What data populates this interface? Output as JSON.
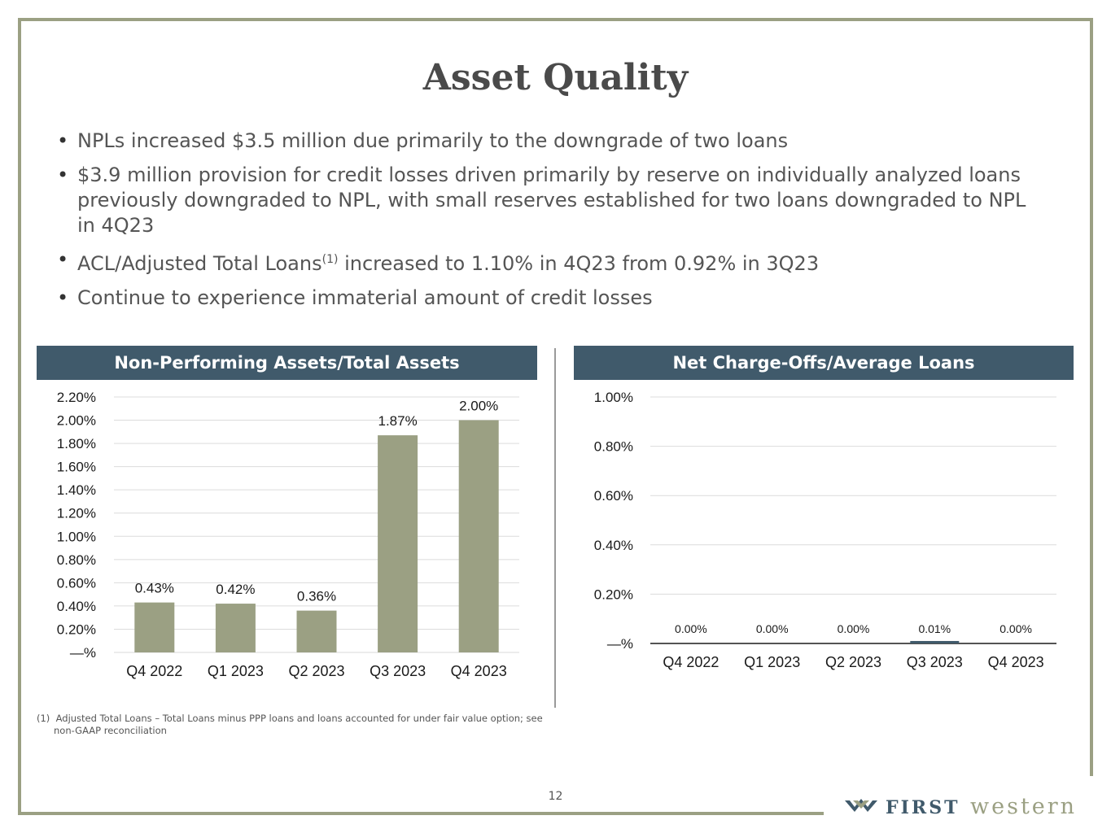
{
  "title": "Asset Quality",
  "bullets": [
    {
      "text": "NPLs increased $3.5 million due primarily to the downgrade of two loans"
    },
    {
      "text": "$3.9 million provision for credit losses driven primarily by reserve on individually analyzed loans previously downgraded to NPL, with small reserves established for two loans downgraded to NPL in 4Q23"
    },
    {
      "text_before": "ACL/Adjusted Total Loans",
      "sup": "(1)",
      "text_after": " increased to 1.10% in 4Q23 from 0.92% in 3Q23"
    },
    {
      "text": "Continue to experience immaterial amount of credit losses"
    }
  ],
  "colors": {
    "frame": "#9ba083",
    "panel_header": "#405a6b",
    "bar": "#9ba083",
    "bar_dark": "#405a6b"
  },
  "chart_data": [
    {
      "type": "bar",
      "title": "Non-Performing Assets/Total Assets",
      "categories": [
        "Q4 2022",
        "Q1 2023",
        "Q2 2023",
        "Q3 2023",
        "Q4 2023"
      ],
      "values": [
        0.43,
        0.42,
        0.36,
        1.87,
        2.0
      ],
      "data_labels": [
        "0.43%",
        "0.42%",
        "0.36%",
        "1.87%",
        "2.00%"
      ],
      "yticks": [
        0,
        0.2,
        0.4,
        0.6,
        0.8,
        1.0,
        1.2,
        1.4,
        1.6,
        1.8,
        2.0,
        2.2
      ],
      "ytick_labels": [
        "—%",
        "0.20%",
        "0.40%",
        "0.60%",
        "0.80%",
        "1.00%",
        "1.20%",
        "1.40%",
        "1.60%",
        "1.80%",
        "2.00%",
        "2.20%"
      ],
      "ylim": [
        0,
        2.2
      ],
      "grid": true,
      "xlabel": "",
      "ylabel": ""
    },
    {
      "type": "bar",
      "title": "Net Charge-Offs/Average Loans",
      "categories": [
        "Q4 2022",
        "Q1 2023",
        "Q2 2023",
        "Q3 2023",
        "Q4 2023"
      ],
      "values": [
        0.0,
        0.0,
        0.0,
        0.01,
        0.0
      ],
      "data_labels": [
        "0.00%",
        "0.00%",
        "0.00%",
        "0.01%",
        "0.00%"
      ],
      "yticks": [
        0,
        0.2,
        0.4,
        0.6,
        0.8,
        1.0
      ],
      "ytick_labels": [
        "—%",
        "0.20%",
        "0.40%",
        "0.60%",
        "0.80%",
        "1.00%"
      ],
      "ylim": [
        0,
        1.0
      ],
      "grid": true,
      "xlabel": "",
      "ylabel": ""
    }
  ],
  "footnote": {
    "marker": "(1)",
    "text": "Adjusted Total Loans – Total Loans minus PPP loans and loans accounted for under fair value option; see non-GAAP reconciliation"
  },
  "page_number": "12",
  "logo": {
    "first": "FIRST",
    "second": "western",
    "icon": "first-western-chevron-icon"
  }
}
